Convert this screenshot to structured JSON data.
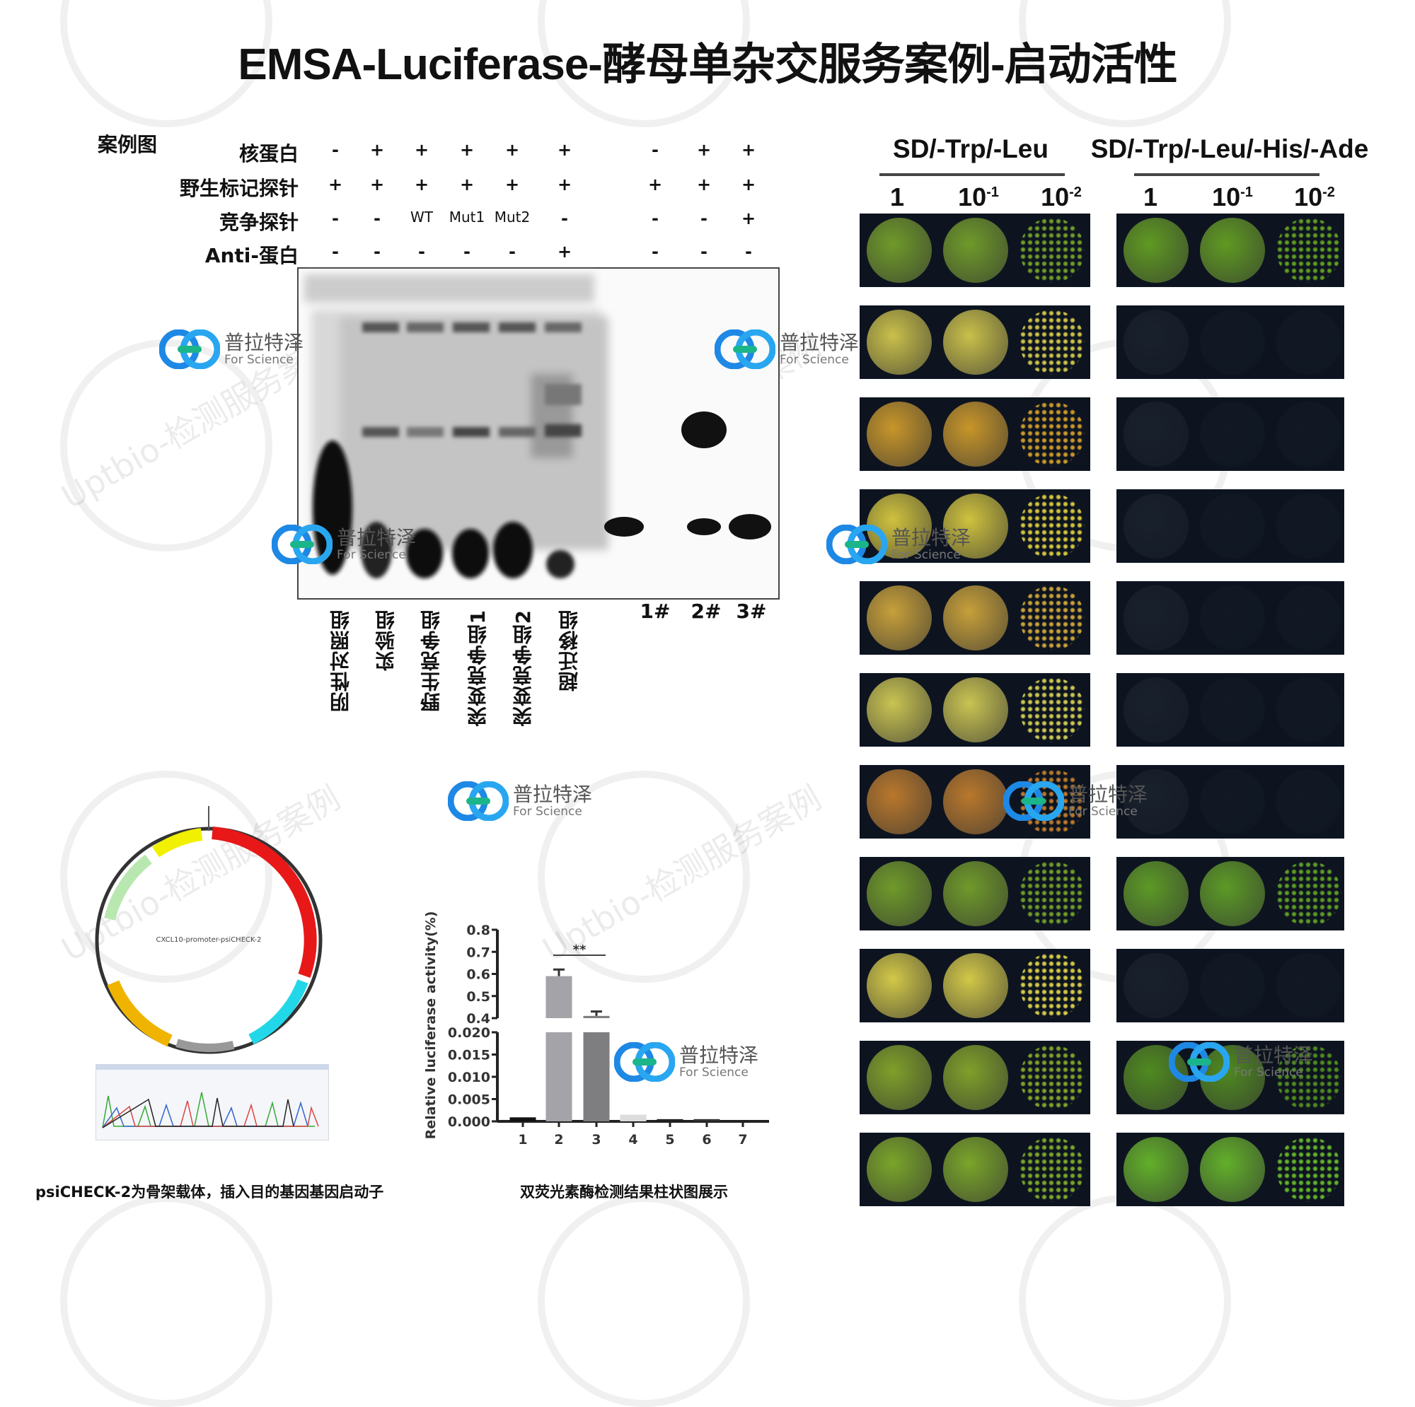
{
  "title": "EMSA-Luciferase-酵母单杂交服务案例-启动活性",
  "watermark": {
    "text": "Uptbio-检测服务案例",
    "logo_cn": "普拉特泽",
    "logo_en": "For Science"
  },
  "case_label": "案例图",
  "emsa": {
    "rows": [
      {
        "label": "核蛋白",
        "values": [
          "-",
          "+",
          "+",
          "+",
          "+",
          "+",
          "-",
          "+",
          "+"
        ]
      },
      {
        "label": "野生标记探针",
        "values": [
          "+",
          "+",
          "+",
          "+",
          "+",
          "+",
          "+",
          "+",
          "+"
        ]
      },
      {
        "label": "竞争探针",
        "values": [
          "-",
          "-",
          "WT",
          "Mut1",
          "Mut2",
          "-",
          "-",
          "-",
          "+"
        ]
      },
      {
        "label": "Anti-蛋白",
        "values": [
          "-",
          "-",
          "-",
          "-",
          "-",
          "+",
          "-",
          "-",
          "-"
        ]
      }
    ],
    "lanes": [
      "阴性对照组",
      "实验组",
      "野生竞争组",
      "突变竞争组1",
      "突变竞争组2",
      "超迁移组"
    ],
    "lanes_right": [
      "1#",
      "2#",
      "3#"
    ]
  },
  "y1h": {
    "media": [
      "SD/-Trp/-Leu",
      "SD/-Trp/-Leu/-His/-Ade"
    ],
    "dilutions": [
      {
        "base": "1",
        "exp": ""
      },
      {
        "base": "10",
        "exp": "-1"
      },
      {
        "base": "10",
        "exp": "-2"
      }
    ],
    "rows": [
      {
        "left": "#6f9a2a",
        "right": "#5f9a22"
      },
      {
        "left": "#c9c04a",
        "right": null
      },
      {
        "left": "#c8962a",
        "right": null
      },
      {
        "left": "#cfc23e",
        "right": null
      },
      {
        "left": "#c7a03a",
        "right": null
      },
      {
        "left": "#c9c452",
        "right": null
      },
      {
        "left": "#b9782c",
        "right": null
      },
      {
        "left": "#6f9a2a",
        "right": "#5c9a26"
      },
      {
        "left": "#d2c848",
        "right": null
      },
      {
        "left": "#7fa02a",
        "right": "#4f8a20"
      },
      {
        "left": "#7aa52a",
        "right": "#62b02a"
      }
    ]
  },
  "plasmid": {
    "name": "CXCL10-promoter-psiCHECK-2",
    "caption": "psiCHECK-2为骨架载体，插入目的基因基因启动子"
  },
  "chart_data": {
    "type": "bar",
    "title": "",
    "categories": [
      "1",
      "2",
      "3",
      "4",
      "5",
      "6",
      "7"
    ],
    "values": [
      0.0009,
      0.59,
      0.41,
      0.0015,
      0.0005,
      0.0005,
      0.0003
    ],
    "errors": [
      0,
      0.03,
      0.02,
      0.0001,
      0,
      0,
      0
    ],
    "colors": [
      "#111111",
      "#a3a3a8",
      "#7e7e80",
      "#dcdcdc",
      "#222222",
      "#333333",
      "#222222"
    ],
    "ylabel": "Relative luciferase activity(%)",
    "xlabel": "",
    "y_axis_break": {
      "lower": [
        0,
        0.02
      ],
      "upper": [
        0.4,
        0.8
      ]
    },
    "lower_ticks": [
      "0.000",
      "0.005",
      "0.010",
      "0.015",
      "0.020"
    ],
    "upper_ticks": [
      "0.4",
      "0.5",
      "0.6",
      "0.7",
      "0.8"
    ],
    "significance": {
      "between": [
        "2",
        "3"
      ],
      "label": "**"
    },
    "caption": "双荧光素酶检测结果柱状图展示"
  }
}
